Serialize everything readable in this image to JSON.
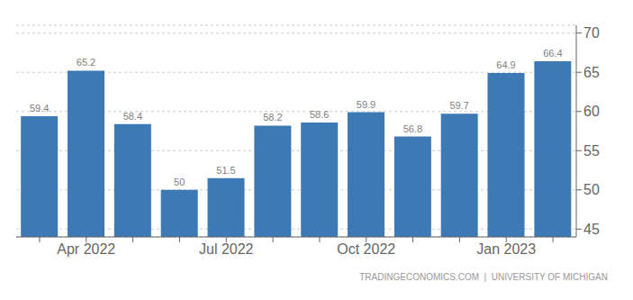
{
  "chart_data": {
    "type": "bar",
    "categories": [
      null,
      "Apr 2022",
      null,
      null,
      "Jul 2022",
      null,
      null,
      "Oct 2022",
      null,
      null,
      "Jan 2023",
      null
    ],
    "values": [
      59.4,
      65.2,
      58.4,
      50,
      51.5,
      58.2,
      58.6,
      59.9,
      56.8,
      59.7,
      64.9,
      66.4
    ],
    "color": "#3d7ab5",
    "ylim": [
      44,
      71
    ],
    "yticks": [
      45,
      50,
      55,
      60,
      65,
      70
    ],
    "grid": true,
    "data_labels": true,
    "annotations": [
      "TRADINGECONOMICS.COM  |  UNIVERSITY OF MICHIGAN"
    ]
  }
}
